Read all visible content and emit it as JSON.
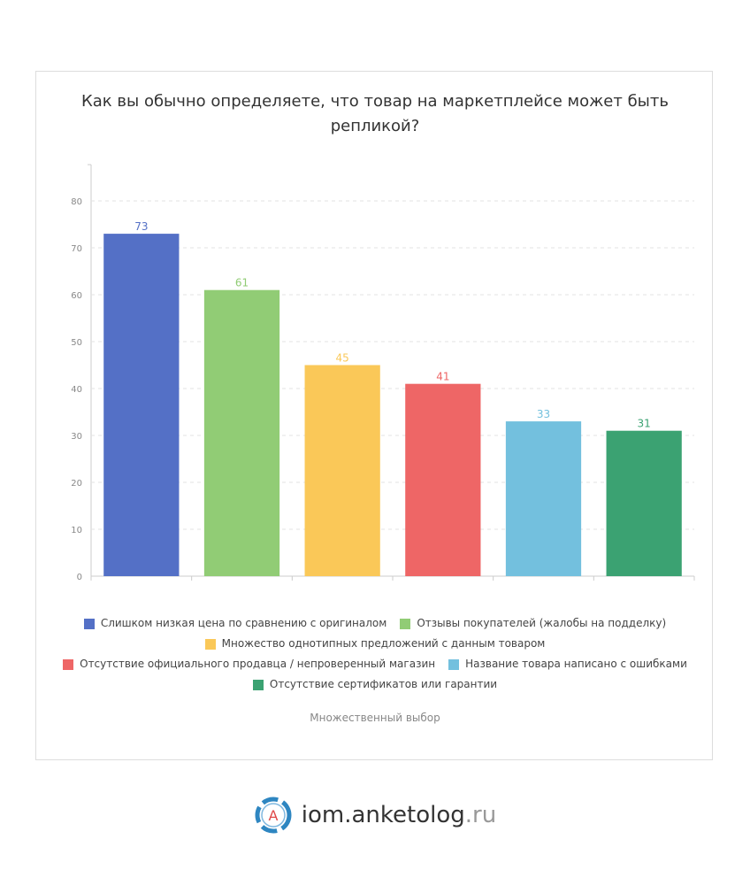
{
  "title": "Как вы обычно определяете, что товар на маркетплейсе может быть репликой?",
  "footnote": "Множественный выбор",
  "brand": {
    "name": "iom.anketolog",
    "tld": ".ru",
    "logo_letter": "A"
  },
  "chart_data": {
    "type": "bar",
    "categories": [
      "Слишком низкая цена по сравнению с оригиналом",
      "Отзывы покупателей (жалобы на подделку)",
      "Множество однотипных предложений с данным товаром",
      "Отсутствие официального продавца / непроверенный магазин",
      "Название товара написано с ошибками",
      "Отсутствие сертификатов или гарантии"
    ],
    "values": [
      73,
      61,
      45,
      41,
      33,
      31
    ],
    "colors": [
      "#5470c6",
      "#91cc75",
      "#fac858",
      "#ee6666",
      "#73c0de",
      "#3ba272"
    ],
    "ylim": [
      0,
      80
    ],
    "yticks": [
      0,
      10,
      20,
      30,
      40,
      50,
      60,
      70,
      80
    ],
    "grid": true,
    "legend": "bottom"
  }
}
